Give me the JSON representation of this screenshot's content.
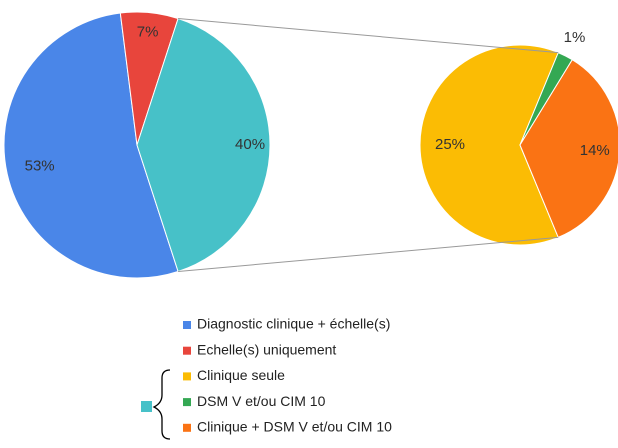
{
  "chart_data": {
    "type": "pie-of-pie",
    "main": {
      "categories": [
        "Diagnostic clinique + échelle(s)",
        "Echelle(s) uniquement",
        null
      ],
      "values": [
        53,
        7,
        40
      ],
      "value_labels": [
        "53%",
        "7%",
        "40%"
      ],
      "colors": [
        "#4a86e8",
        "#e8453c",
        "#47c1c8"
      ]
    },
    "secondary": {
      "categories": [
        "Clinique seule",
        "DSM V et/ou CIM 10",
        "Clinique + DSM V et/ou CIM 10"
      ],
      "values": [
        25,
        1,
        14
      ],
      "value_labels": [
        "25%",
        "1%",
        "14%"
      ],
      "colors": [
        "#fbbc04",
        "#34a853",
        "#fa7314"
      ]
    }
  }
}
